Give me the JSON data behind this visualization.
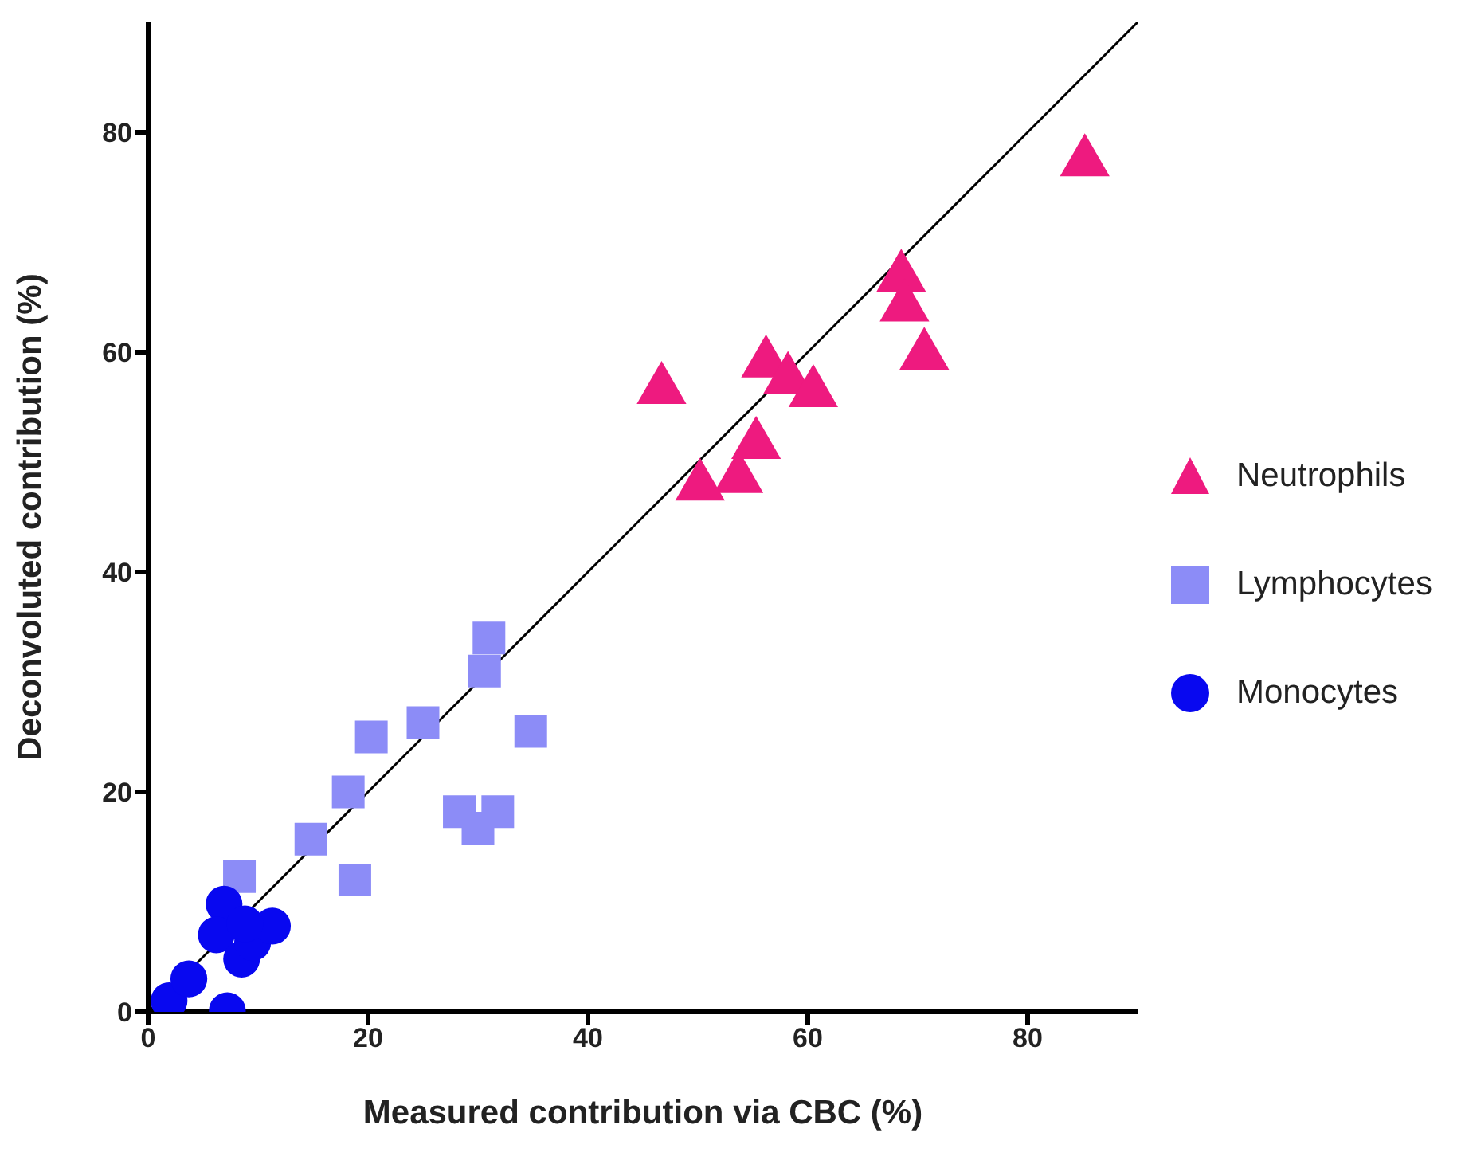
{
  "chart_data": {
    "type": "scatter",
    "xlabel": "Measured contribution via CBC (%)",
    "ylabel": "Deconvoluted contribution (%)",
    "xlim": [
      0,
      90
    ],
    "ylim": [
      0,
      90
    ],
    "xticks": [
      0,
      20,
      40,
      60,
      80
    ],
    "yticks": [
      0,
      20,
      40,
      60,
      80
    ],
    "grid": false,
    "legend": "right",
    "series": [
      {
        "name": "Neutrophils",
        "color": "#ee1a7f",
        "marker": "triangle",
        "x": [
          85.2,
          68.5,
          68.8,
          70.6,
          46.7,
          56.2,
          58.2,
          60.5,
          55.3,
          53.7,
          50.2
        ],
        "values": [
          77.3,
          66.8,
          64.1,
          59.7,
          56.6,
          59,
          57.5,
          56.3,
          51.6,
          48.5,
          47.8
        ]
      },
      {
        "name": "Lymphocytes",
        "color": "#8c8cf7",
        "marker": "square",
        "x": [
          31,
          30.6,
          25,
          20.3,
          34.8,
          18.2,
          14.8,
          18.8,
          8.3,
          28.3,
          31.8,
          30
        ],
        "values": [
          34,
          31,
          26.3,
          25,
          25.5,
          20,
          15.7,
          12,
          12.3,
          18.2,
          18.2,
          16.7
        ]
      },
      {
        "name": "Monocytes",
        "color": "#0808f0",
        "marker": "circle",
        "x": [
          1.9,
          3.7,
          7.2,
          6.9,
          6.2,
          8.5,
          9.5,
          11.3,
          8.8
        ],
        "values": [
          1,
          3,
          0.1,
          9.8,
          7,
          4.8,
          6.3,
          7.8,
          8
        ]
      },
      {
        "type": "line",
        "color": "#000000",
        "marker": "none",
        "x": [
          0,
          90
        ],
        "values": [
          0,
          90
        ]
      }
    ]
  }
}
